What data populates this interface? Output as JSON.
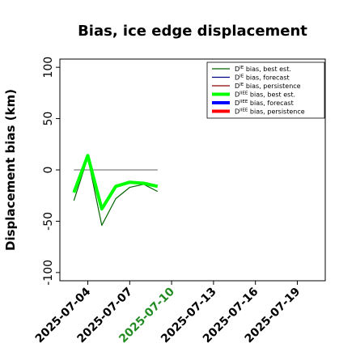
{
  "chart_data": {
    "type": "line",
    "title": "Bias, ice edge displacement",
    "ylabel": "Displacement bias (km)",
    "xlabel": "",
    "ylim": [
      -108,
      108
    ],
    "xlim": [
      "2025-07-02",
      "2025-07-21"
    ],
    "yticks": [
      100,
      50,
      0,
      -50,
      -100
    ],
    "xticks": [
      "2025-07-04",
      "2025-07-07",
      "2025-07-10",
      "2025-07-13",
      "2025-07-16",
      "2025-07-19"
    ],
    "highlight_xtick": "2025-07-10",
    "highlight_color": "#228b22",
    "reference_line": {
      "y": 0,
      "x_from": "2025-07-03",
      "x_to": "2025-07-09",
      "color": "#808080"
    },
    "legend_position": "top-right",
    "series": [
      {
        "label_main": "D",
        "label_sup": "IE",
        "label_rest": " bias, best est.",
        "color": "#006400",
        "width": 1.2,
        "x": [
          "2025-07-03",
          "2025-07-04",
          "2025-07-05",
          "2025-07-06",
          "2025-07-07",
          "2025-07-08",
          "2025-07-09"
        ],
        "values": [
          -30,
          12,
          -54,
          -28,
          -17,
          -14,
          -21
        ]
      },
      {
        "label_main": "D",
        "label_sup": "IE",
        "label_rest": " bias, forecast",
        "color": "#00008b",
        "width": 1.2,
        "x": [],
        "values": []
      },
      {
        "label_main": "D",
        "label_sup": "IE",
        "label_rest": " bias, persistence",
        "color": "#8b0000",
        "width": 1.2,
        "x": [],
        "values": []
      },
      {
        "label_main": "D",
        "label_sup": "IIEE",
        "label_rest": " bias, best est.",
        "color": "#00ff00",
        "width": 4,
        "x": [
          "2025-07-03",
          "2025-07-04",
          "2025-07-05",
          "2025-07-06",
          "2025-07-07",
          "2025-07-08",
          "2025-07-09"
        ],
        "values": [
          -22,
          14,
          -38,
          -16,
          -12,
          -13,
          -16
        ]
      },
      {
        "label_main": "D",
        "label_sup": "IIEE",
        "label_rest": " bias, forecast",
        "color": "#0000ff",
        "width": 4,
        "x": [],
        "values": []
      },
      {
        "label_main": "D",
        "label_sup": "IIEE",
        "label_rest": " bias, persistence",
        "color": "#ff0000",
        "width": 4,
        "x": [],
        "values": []
      }
    ]
  }
}
